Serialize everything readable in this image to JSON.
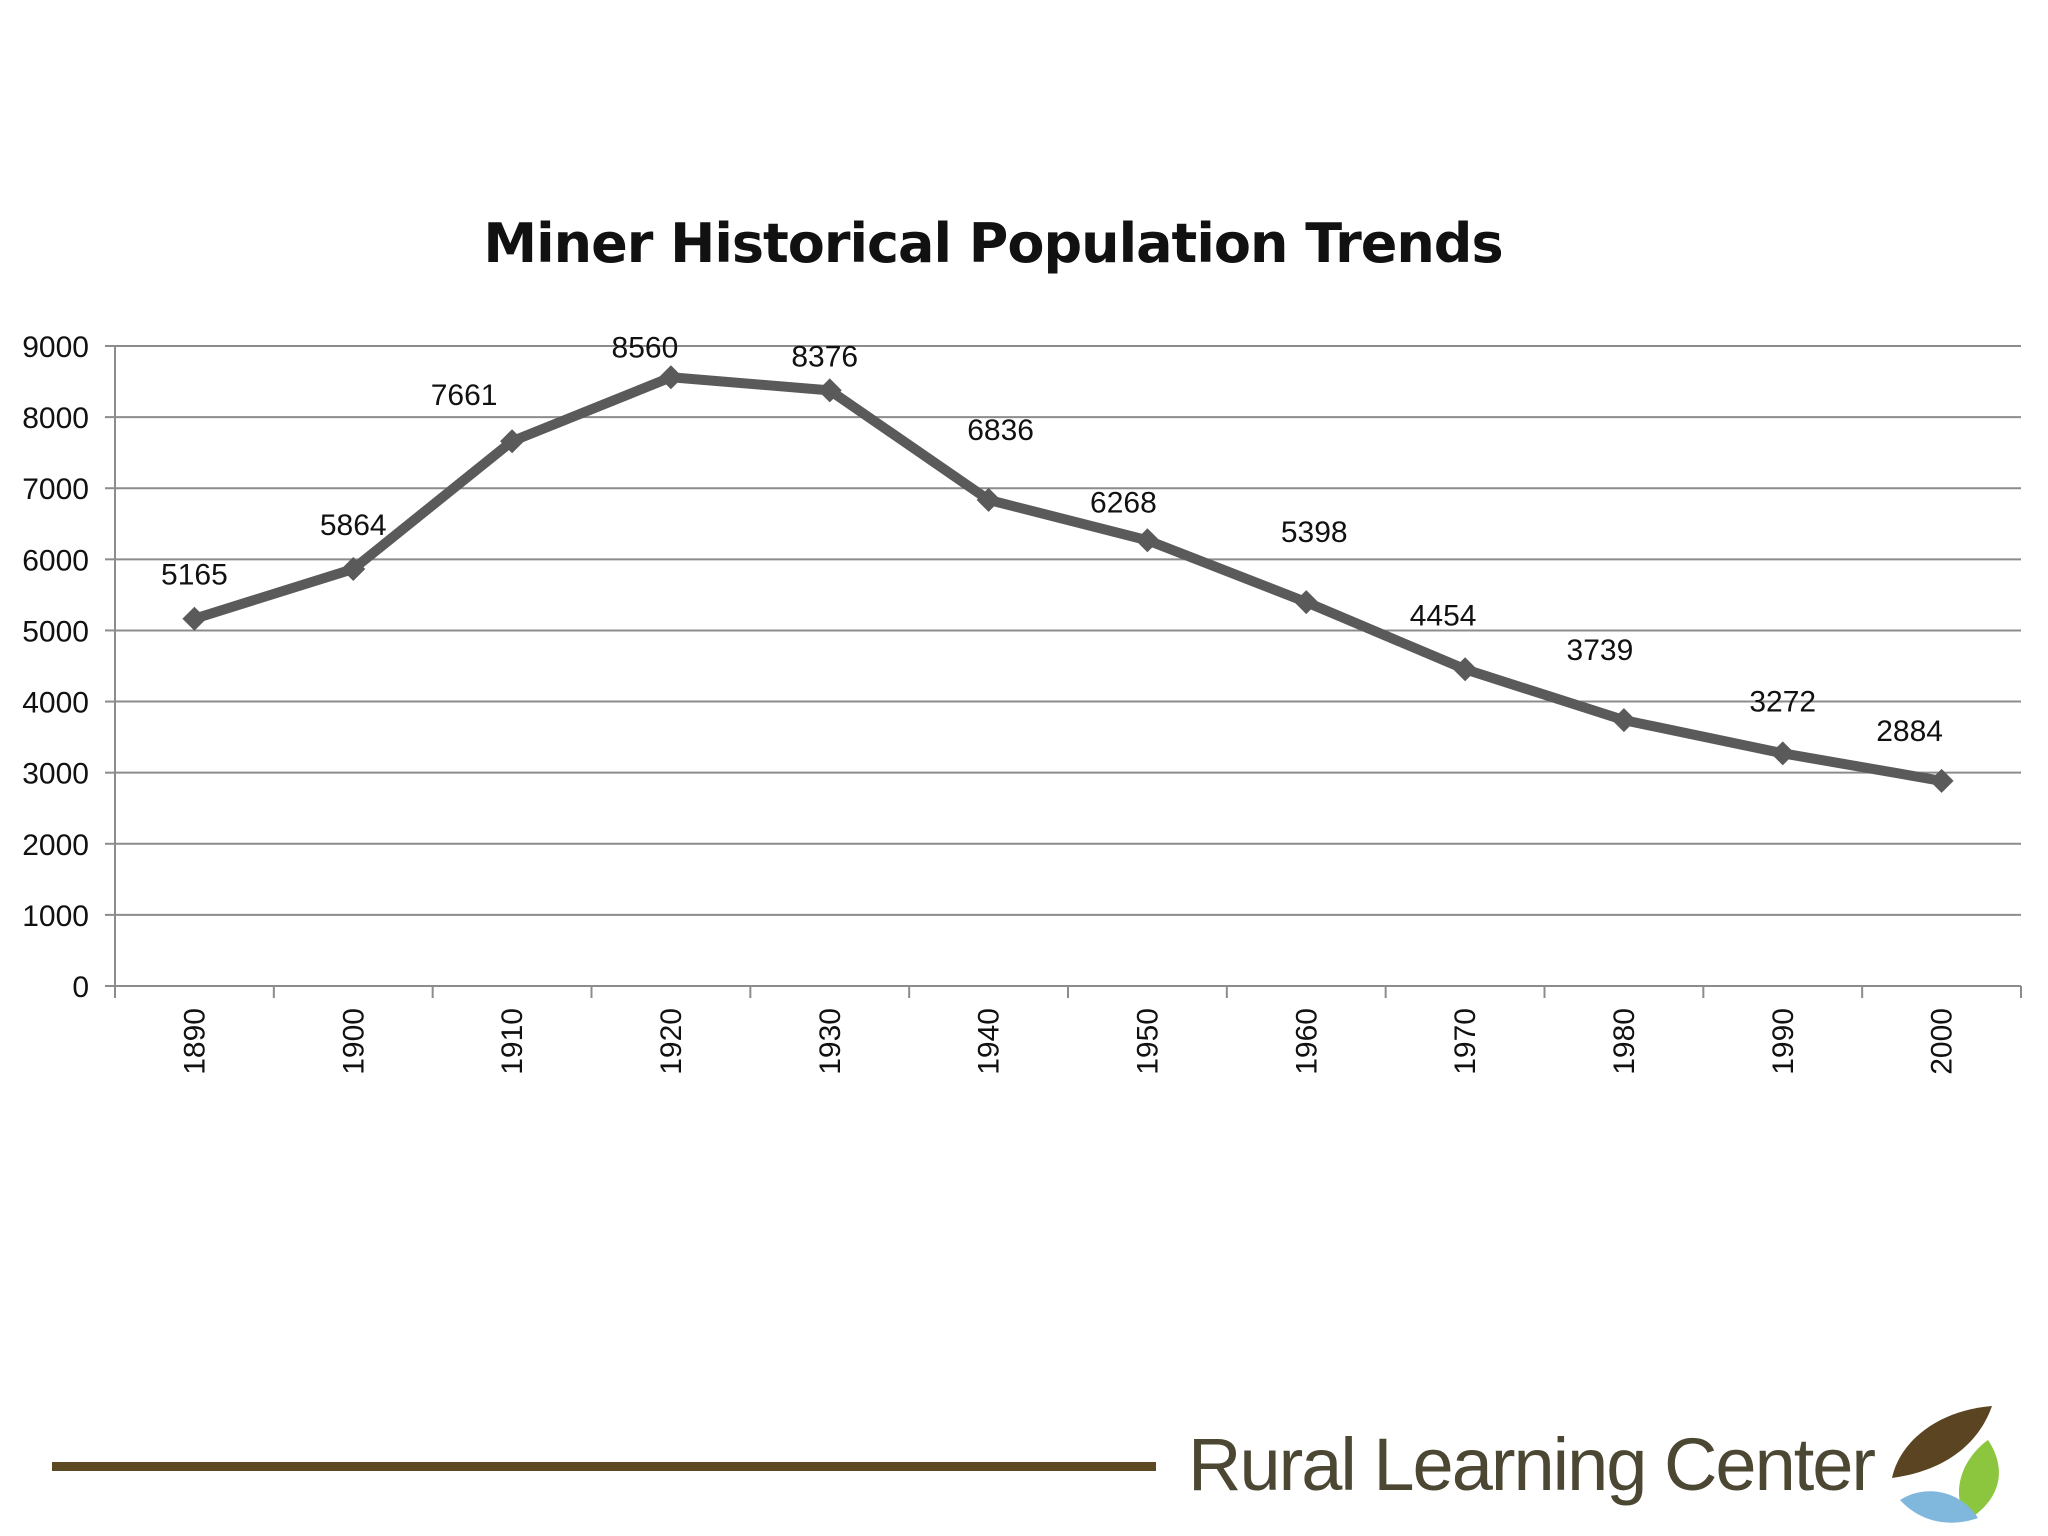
{
  "colors": {
    "line": "#5a5a5a",
    "grid": "#8c8c8c",
    "footer_bar": "#5b4a22",
    "logo_text": "#4b4733",
    "leaf_brown": "#5b4422",
    "leaf_green": "#8cc63f",
    "leaf_blue": "#7fb8dc"
  },
  "chart_data": {
    "type": "line",
    "title": "Miner Historical Population Trends",
    "xlabel": "",
    "ylabel": "",
    "categories": [
      "1890",
      "1900",
      "1910",
      "1920",
      "1930",
      "1940",
      "1950",
      "1960",
      "1970",
      "1980",
      "1990",
      "2000"
    ],
    "values": [
      5165,
      5864,
      7661,
      8560,
      8376,
      6836,
      6268,
      5398,
      4454,
      3739,
      3272,
      2884
    ],
    "data_labels": [
      "5165",
      "5864",
      "7661",
      "8560",
      "8376",
      "6836",
      "6268",
      "5398",
      "4454",
      "3739",
      "3272",
      "2884"
    ],
    "ylim": [
      0,
      9000
    ],
    "yticks": [
      0,
      1000,
      2000,
      3000,
      4000,
      5000,
      6000,
      7000,
      8000,
      9000
    ],
    "ytick_labels": [
      "0",
      "1000",
      "2000",
      "3000",
      "4000",
      "5000",
      "6000",
      "7000",
      "8000",
      "9000"
    ],
    "grid": true,
    "marker": "diamond",
    "legend": "none"
  },
  "footer": {
    "logo_text": "Rural Learning Center",
    "logo_icon": "leaf-logo-icon"
  }
}
